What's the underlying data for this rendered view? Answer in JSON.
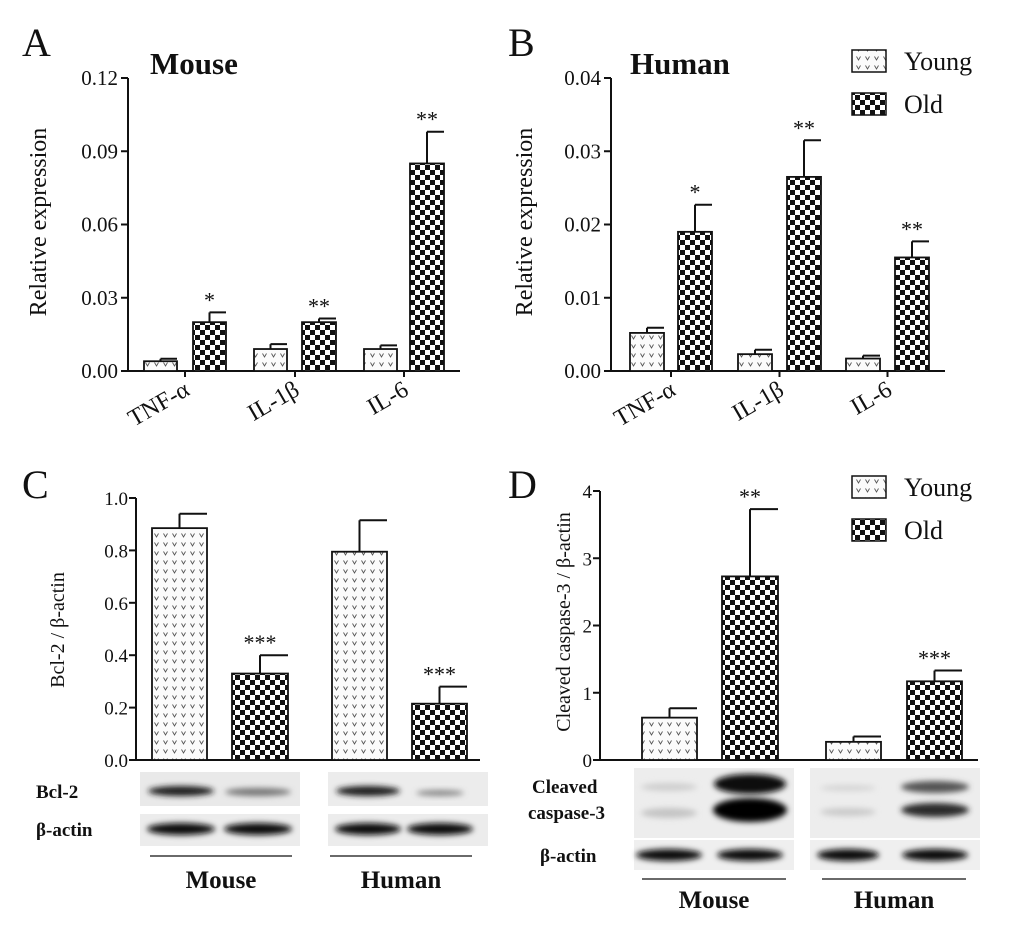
{
  "chart_data": [
    {
      "panel": "A",
      "type": "bar",
      "title": "Mouse",
      "xlabel": "",
      "ylabel": "Relative expression",
      "ylim": [
        0,
        0.12
      ],
      "yticks": [
        "0.00",
        "0.03",
        "0.06",
        "0.09",
        "0.12"
      ],
      "categories": [
        "TNF-α",
        "IL-1β",
        "IL-6"
      ],
      "series": [
        {
          "name": "Young",
          "values": [
            0.004,
            0.009,
            0.009
          ],
          "errors": [
            0.001,
            0.002,
            0.0015
          ]
        },
        {
          "name": "Old",
          "values": [
            0.02,
            0.02,
            0.085
          ],
          "errors": [
            0.004,
            0.0015,
            0.013
          ]
        }
      ],
      "significance": [
        "*",
        "**",
        "**"
      ]
    },
    {
      "panel": "B",
      "type": "bar",
      "title": "Human",
      "xlabel": "",
      "ylabel": "Relative expression",
      "ylim": [
        0,
        0.04
      ],
      "yticks": [
        "0.00",
        "0.01",
        "0.02",
        "0.03",
        "0.04"
      ],
      "categories": [
        "TNF-α",
        "IL-1β",
        "IL-6"
      ],
      "series": [
        {
          "name": "Young",
          "values": [
            0.0052,
            0.0023,
            0.0017
          ],
          "errors": [
            0.0007,
            0.0006,
            0.0004
          ]
        },
        {
          "name": "Old",
          "values": [
            0.019,
            0.0265,
            0.0155
          ],
          "errors": [
            0.0037,
            0.005,
            0.0022
          ]
        }
      ],
      "significance": [
        "*",
        "**",
        "**"
      ],
      "legend": {
        "position": "top-right",
        "entries": [
          "Young",
          "Old"
        ]
      }
    },
    {
      "panel": "C",
      "type": "bar",
      "title": "",
      "xlabel": "",
      "ylabel": "Bcl-2 / β-actin",
      "ylim": [
        0,
        1.0
      ],
      "yticks": [
        "0.0",
        "0.2",
        "0.4",
        "0.6",
        "0.8",
        "1.0"
      ],
      "categories": [
        "Mouse",
        "Human"
      ],
      "series": [
        {
          "name": "Young",
          "values": [
            0.885,
            0.795
          ],
          "errors": [
            0.055,
            0.12
          ]
        },
        {
          "name": "Old",
          "values": [
            0.33,
            0.215
          ],
          "errors": [
            0.07,
            0.065
          ]
        }
      ],
      "significance": [
        "***",
        "***"
      ],
      "blot": {
        "rows": [
          "Bcl-2",
          "β-actin"
        ],
        "groups": [
          "Mouse",
          "Human"
        ]
      }
    },
    {
      "panel": "D",
      "type": "bar",
      "title": "",
      "xlabel": "",
      "ylabel": "Cleaved caspase-3 / β-actin",
      "ylim": [
        0,
        4
      ],
      "yticks": [
        "0",
        "1",
        "2",
        "3",
        "4"
      ],
      "categories": [
        "Mouse",
        "Human"
      ],
      "series": [
        {
          "name": "Young",
          "values": [
            0.63,
            0.27
          ],
          "errors": [
            0.14,
            0.08
          ]
        },
        {
          "name": "Old",
          "values": [
            2.73,
            1.17
          ],
          "errors": [
            1.0,
            0.16
          ]
        }
      ],
      "significance": [
        "**",
        "***"
      ],
      "legend": {
        "position": "top-right",
        "entries": [
          "Young",
          "Old"
        ]
      },
      "blot": {
        "rows": [
          "Cleaved caspase-3",
          "β-actin"
        ],
        "groups": [
          "Mouse",
          "Human"
        ]
      }
    }
  ],
  "panel_letters": [
    "A",
    "B",
    "C",
    "D"
  ],
  "blot_labels": {
    "bcl2": "Bcl-2",
    "bactin": "β-actin",
    "cleaved_line1": "Cleaved",
    "cleaved_line2": "caspase-3"
  },
  "group_labels": {
    "mouse": "Mouse",
    "human": "Human"
  }
}
